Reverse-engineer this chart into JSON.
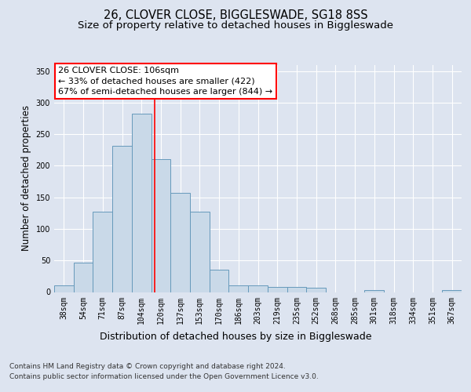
{
  "title": "26, CLOVER CLOSE, BIGGLESWADE, SG18 8SS",
  "subtitle": "Size of property relative to detached houses in Biggleswade",
  "xlabel": "Distribution of detached houses by size in Biggleswade",
  "ylabel": "Number of detached properties",
  "categories": [
    "38sqm",
    "54sqm",
    "71sqm",
    "87sqm",
    "104sqm",
    "120sqm",
    "137sqm",
    "153sqm",
    "170sqm",
    "186sqm",
    "203sqm",
    "219sqm",
    "235sqm",
    "252sqm",
    "268sqm",
    "285sqm",
    "301sqm",
    "318sqm",
    "334sqm",
    "351sqm",
    "367sqm"
  ],
  "values": [
    10,
    46,
    127,
    232,
    283,
    210,
    157,
    127,
    35,
    11,
    11,
    8,
    8,
    7,
    0,
    0,
    3,
    0,
    0,
    0,
    3
  ],
  "bar_color": "#c9d9e8",
  "bar_edgecolor": "#6699bb",
  "vline_x": 4.67,
  "vline_color": "red",
  "annotation_text": "26 CLOVER CLOSE: 106sqm\n← 33% of detached houses are smaller (422)\n67% of semi-detached houses are larger (844) →",
  "annotation_box_color": "white",
  "annotation_box_edgecolor": "red",
  "ylim": [
    0,
    360
  ],
  "yticks": [
    0,
    50,
    100,
    150,
    200,
    250,
    300,
    350
  ],
  "bg_color": "#dde4f0",
  "plot_bg_color": "#dde4f0",
  "footer_line1": "Contains HM Land Registry data © Crown copyright and database right 2024.",
  "footer_line2": "Contains public sector information licensed under the Open Government Licence v3.0.",
  "title_fontsize": 10.5,
  "subtitle_fontsize": 9.5,
  "xlabel_fontsize": 9,
  "ylabel_fontsize": 8.5,
  "tick_fontsize": 7,
  "footer_fontsize": 6.5,
  "annotation_fontsize": 8
}
